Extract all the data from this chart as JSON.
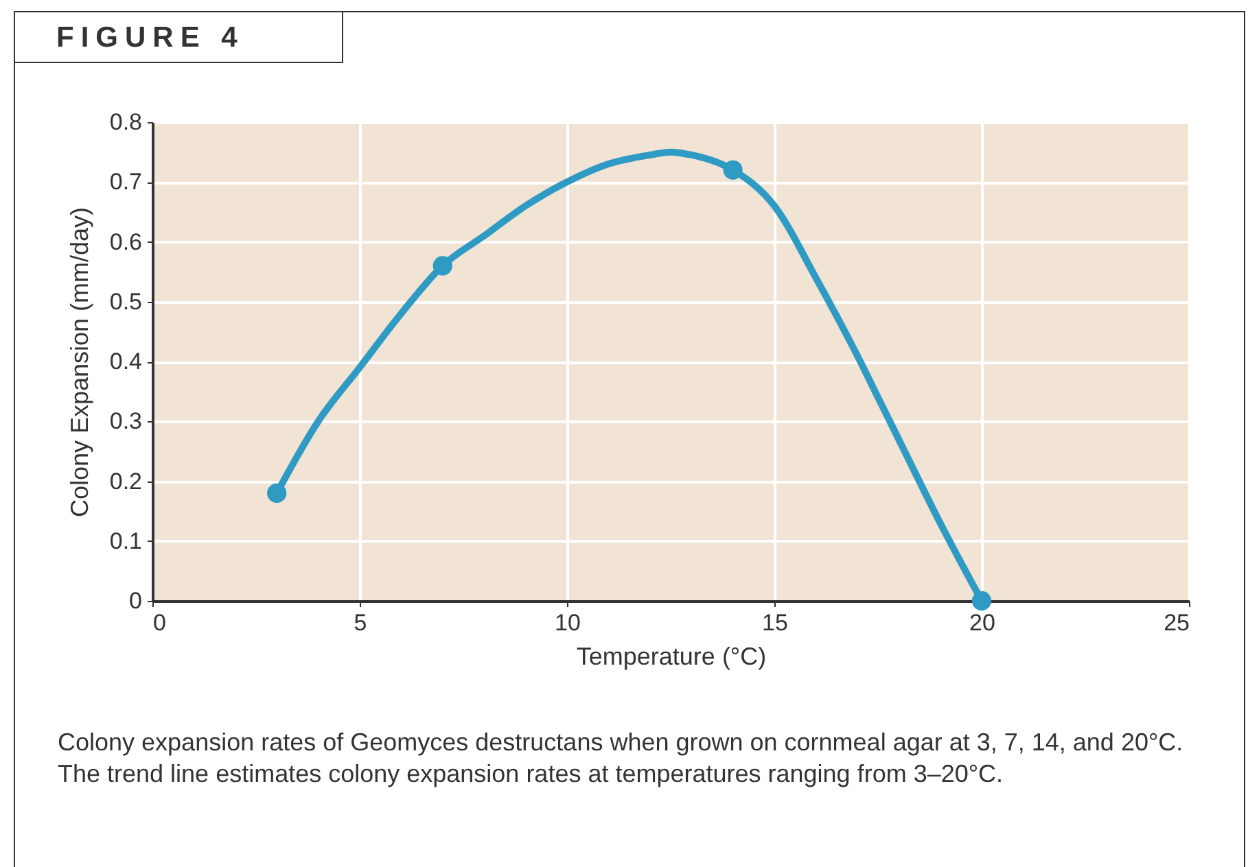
{
  "chart_data": {
    "type": "line",
    "title": "FIGURE 4",
    "xlabel": "Temperature (°C)",
    "ylabel": "Colony Expansion (mm/day)",
    "xlim": [
      0,
      25
    ],
    "xticks": [
      0,
      5,
      10,
      15,
      20,
      25
    ],
    "ylim": [
      0,
      0.8
    ],
    "yticks": [
      0,
      0.1,
      0.2,
      0.3,
      0.4,
      0.5,
      0.6,
      0.7,
      0.8
    ],
    "grid": true,
    "series": [
      {
        "type": "line",
        "color": "#2f9bc4",
        "x": [
          3,
          4,
          5,
          6,
          7,
          8,
          9,
          10,
          11,
          12,
          12.5,
          13,
          14,
          15,
          16,
          17,
          17.5,
          18,
          19,
          20
        ],
        "values": [
          0.18,
          0.3,
          0.39,
          0.48,
          0.56,
          0.61,
          0.66,
          0.7,
          0.73,
          0.745,
          0.75,
          0.745,
          0.72,
          0.66,
          0.54,
          0.41,
          0.34,
          0.27,
          0.13,
          0
        ]
      },
      {
        "type": "scatter",
        "marker": "circle",
        "color": "#2f9bc4",
        "x": [
          3,
          7,
          14,
          20
        ],
        "values": [
          0.18,
          0.56,
          0.72,
          0
        ]
      }
    ],
    "annotations": [
      "Colony expansion rates of Geomyces destructans when grown on cornmeal agar at 3, 7, 14, and 20°C. The trend line estimates colony expansion rates at temperatures ranging from 3–20°C."
    ]
  }
}
